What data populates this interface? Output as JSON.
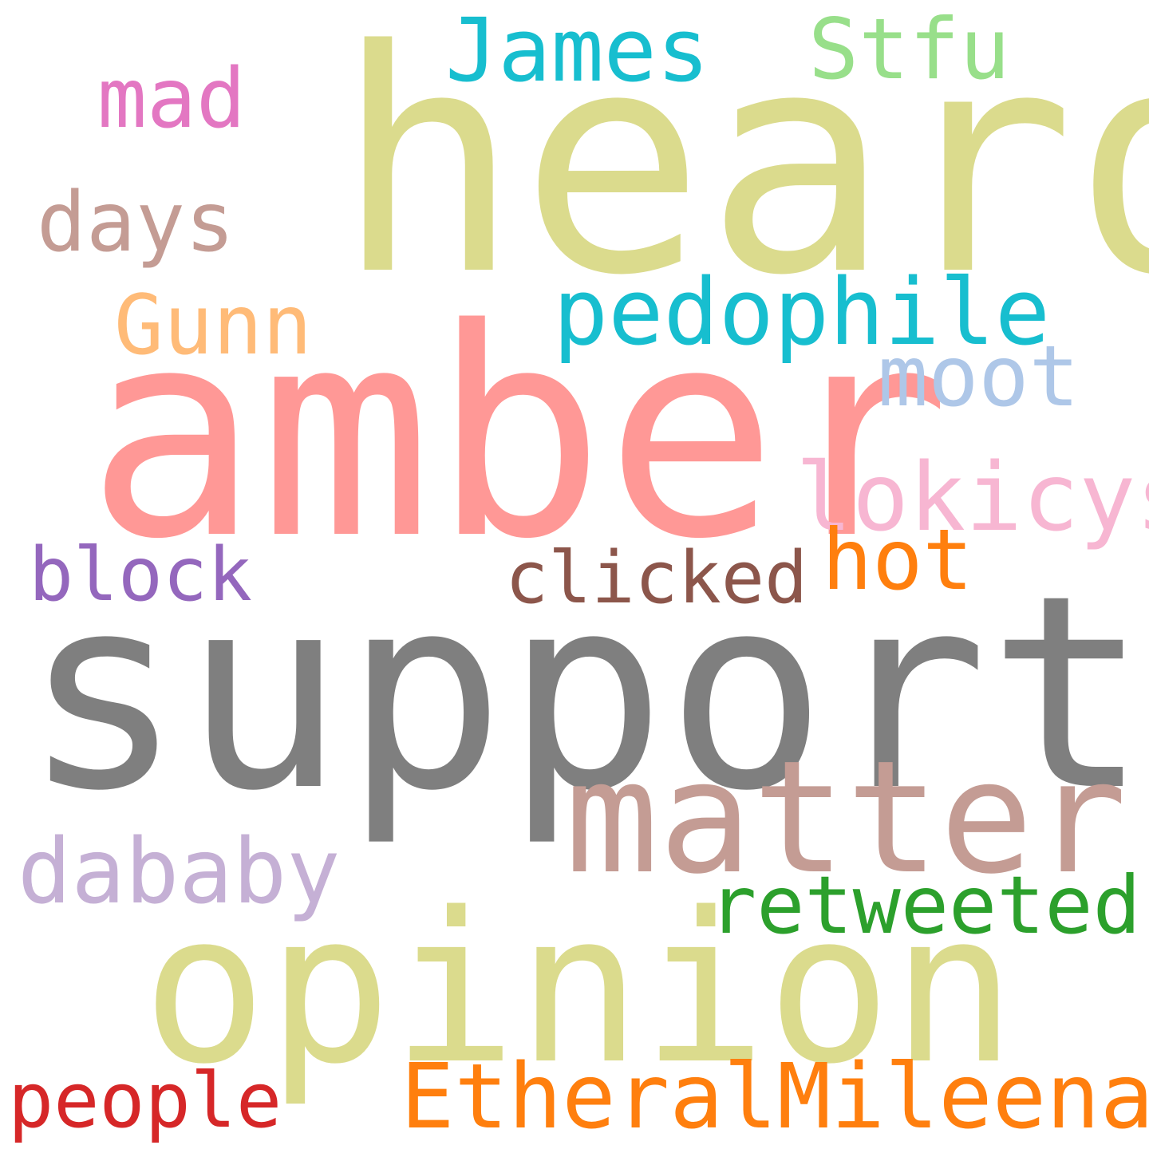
{
  "words": [
    {
      "text": "heard",
      "color": "#dbdb8d"
    },
    {
      "text": "amber",
      "color": "#ff9896"
    },
    {
      "text": "support",
      "color": "#7f7f7f"
    },
    {
      "text": "opinion",
      "color": "#dbdb8d"
    },
    {
      "text": "matter",
      "color": "#c49c94"
    },
    {
      "text": "EtheralMileena",
      "color": "#ff7f0e"
    },
    {
      "text": "pedophile",
      "color": "#17becf"
    },
    {
      "text": "lokicys",
      "color": "#f7b6d2"
    },
    {
      "text": "James",
      "color": "#17becf"
    },
    {
      "text": "dababy",
      "color": "#c5b0d5"
    },
    {
      "text": "retweeted",
      "color": "#2ca02c"
    },
    {
      "text": "Stfu",
      "color": "#98df8a"
    },
    {
      "text": "moot",
      "color": "#aec7e8"
    },
    {
      "text": "Gunn",
      "color": "#ffbb78"
    },
    {
      "text": "days",
      "color": "#c49c94"
    },
    {
      "text": "clicked",
      "color": "#8c564b"
    },
    {
      "text": "block",
      "color": "#9467bd"
    },
    {
      "text": "hot",
      "color": "#ff7f0e"
    },
    {
      "text": "people",
      "color": "#d62728"
    },
    {
      "text": "mad",
      "color": "#e377c2"
    }
  ]
}
